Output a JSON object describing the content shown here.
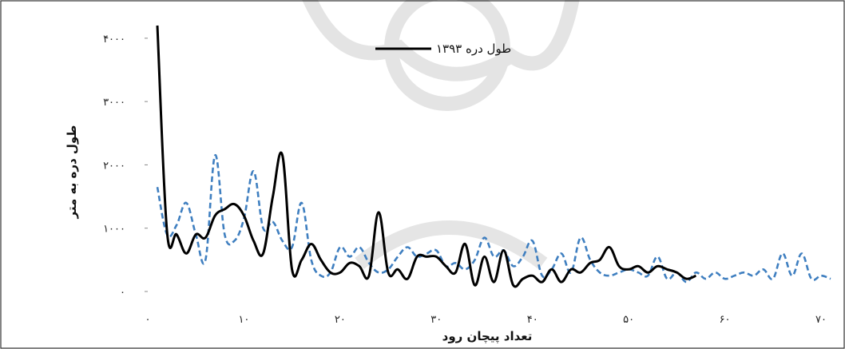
{
  "chart_data": {
    "type": "line",
    "title": "",
    "xlabel": "تعداد پیچان رود",
    "ylabel": "طول دره به متر",
    "xlim": [
      0,
      70
    ],
    "ylim": [
      0,
      4200
    ],
    "x_ticks": [
      0,
      10,
      20,
      30,
      40,
      50,
      60,
      70
    ],
    "x_tick_labels": [
      "۰",
      "۱۰",
      "۲۰",
      "۳۰",
      "۴۰",
      "۵۰",
      "۶۰",
      "۷۰"
    ],
    "y_ticks": [
      0,
      1000,
      2000,
      3000,
      4000
    ],
    "y_tick_labels": [
      "۰",
      "۱۰۰۰",
      "۲۰۰۰",
      "۳۰۰۰",
      "۴۰۰۰"
    ],
    "grid": false,
    "legend_position": "top-center",
    "series": [
      {
        "name": "طول دره ۱۳۹۳",
        "color": "#000000",
        "style": "solid",
        "x": [
          1,
          2,
          3,
          4,
          5,
          6,
          7,
          8,
          9,
          10,
          11,
          12,
          13,
          14,
          15,
          16,
          17,
          18,
          19,
          20,
          21,
          22,
          23,
          24,
          25,
          26,
          27,
          28,
          29,
          30,
          31,
          32,
          33,
          34,
          35,
          36,
          37,
          38,
          39,
          40,
          41,
          42,
          43,
          44,
          45,
          46,
          47,
          48,
          49,
          50,
          51,
          52,
          53,
          54,
          55,
          56,
          57
        ],
        "values": [
          4200,
          950,
          900,
          600,
          900,
          850,
          1200,
          1300,
          1380,
          1200,
          800,
          600,
          1500,
          2150,
          350,
          500,
          750,
          500,
          300,
          300,
          450,
          400,
          250,
          1250,
          300,
          350,
          200,
          550,
          550,
          550,
          400,
          300,
          750,
          100,
          550,
          150,
          650,
          100,
          200,
          250,
          150,
          350,
          150,
          350,
          300,
          450,
          500,
          700,
          400,
          350,
          400,
          300,
          400,
          350,
          300,
          200,
          250
        ]
      },
      {
        "name": "",
        "color": "#3f7fc0",
        "style": "dashed",
        "x": [
          1,
          2,
          3,
          4,
          5,
          6,
          7,
          8,
          9,
          10,
          11,
          12,
          13,
          14,
          15,
          16,
          17,
          18,
          19,
          20,
          21,
          22,
          23,
          24,
          25,
          26,
          27,
          28,
          29,
          30,
          31,
          32,
          33,
          34,
          35,
          36,
          37,
          38,
          39,
          40,
          41,
          42,
          43,
          44,
          45,
          46,
          47,
          48,
          49,
          50,
          51,
          52,
          53,
          54,
          55,
          56,
          57,
          58,
          59,
          60,
          61,
          62,
          63,
          64,
          65,
          66,
          67,
          68,
          69,
          70,
          71
        ],
        "values": [
          1650,
          900,
          1050,
          1400,
          900,
          500,
          2150,
          900,
          800,
          1150,
          1900,
          1000,
          1100,
          800,
          700,
          1400,
          500,
          250,
          300,
          700,
          550,
          700,
          450,
          300,
          350,
          550,
          700,
          550,
          600,
          650,
          400,
          450,
          350,
          500,
          850,
          550,
          650,
          400,
          550,
          800,
          250,
          350,
          600,
          300,
          850,
          500,
          300,
          250,
          300,
          350,
          300,
          250,
          550,
          200,
          300,
          150,
          300,
          200,
          300,
          200,
          250,
          300,
          250,
          350,
          200,
          600,
          250,
          600,
          200,
          250,
          200
        ]
      }
    ]
  }
}
